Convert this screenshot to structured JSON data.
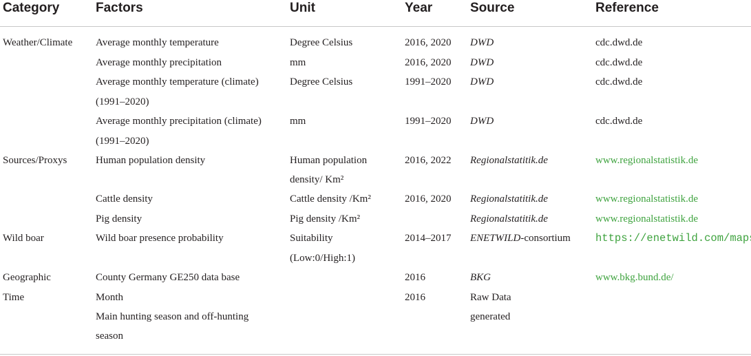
{
  "headers": [
    "Category",
    "Factors",
    "Unit",
    "Year",
    "Source",
    "Reference"
  ],
  "rows": [
    {
      "category": "Weather/Climate",
      "factors": [
        "Average monthly temperature"
      ],
      "unit": [
        "Degree Celsius"
      ],
      "year": "2016, 2020",
      "source": [
        "DWD"
      ],
      "reference": "cdc.dwd.de"
    },
    {
      "category": "",
      "factors": [
        "Average monthly precipitation"
      ],
      "unit": [
        "mm"
      ],
      "year": "2016, 2020",
      "source": [
        "DWD"
      ],
      "reference": "cdc.dwd.de"
    },
    {
      "category": "",
      "factors": [
        "Average monthly temperature (climate)",
        "(1991–2020)"
      ],
      "unit": [
        "Degree Celsius"
      ],
      "year": "1991–2020",
      "source": [
        "DWD"
      ],
      "reference": "cdc.dwd.de"
    },
    {
      "category": "",
      "factors": [
        "Average monthly precipitation (climate)",
        "(1991–2020)"
      ],
      "unit": [
        "mm"
      ],
      "year": "1991–2020",
      "source": [
        "DWD"
      ],
      "reference": "cdc.dwd.de"
    },
    {
      "category": "Sources/Proxys",
      "factors": [
        "Human population density"
      ],
      "unit": [
        "Human population",
        "density/ Km²"
      ],
      "year": "2016, 2022",
      "source": [
        "Regionalstatitik.de"
      ],
      "reference": "www.regionalstatistik.de"
    },
    {
      "category": "",
      "factors": [
        "Cattle density"
      ],
      "unit": [
        "Cattle density /Km²"
      ],
      "year": "2016, 2020",
      "source": [
        "Regionalstatitik.de"
      ],
      "reference": "www.regionalstatistik.de"
    },
    {
      "category": "",
      "factors": [
        "Pig density"
      ],
      "unit": [
        "Pig density /Km²"
      ],
      "year": "",
      "source": [
        "Regionalstatitik.de"
      ],
      "reference": "www.regionalstatistik.de"
    },
    {
      "category": "Wild boar",
      "factors": [
        "Wild boar presence probability"
      ],
      "unit": [
        "Suitability",
        "(Low:0/High:1)"
      ],
      "year": "2014–2017",
      "source": [
        "ENETWILD",
        "-consortium"
      ],
      "reference": "https://enetwild.com/maps/"
    },
    {
      "category": "Geographic",
      "factors": [
        "County Germany GE250 data base"
      ],
      "unit": [
        ""
      ],
      "year": "2016",
      "source": [
        "BKG"
      ],
      "reference": "www.bkg.bund.de/"
    },
    {
      "category": "Time",
      "factors": [
        "Month"
      ],
      "unit": [
        ""
      ],
      "year": "2016",
      "source": [
        "Raw Data",
        "generated"
      ],
      "reference": ""
    },
    {
      "category": "",
      "factors": [
        "Main hunting season and off-hunting",
        "season"
      ],
      "unit": [
        ""
      ],
      "year": "",
      "source": [
        ""
      ],
      "reference": ""
    }
  ]
}
